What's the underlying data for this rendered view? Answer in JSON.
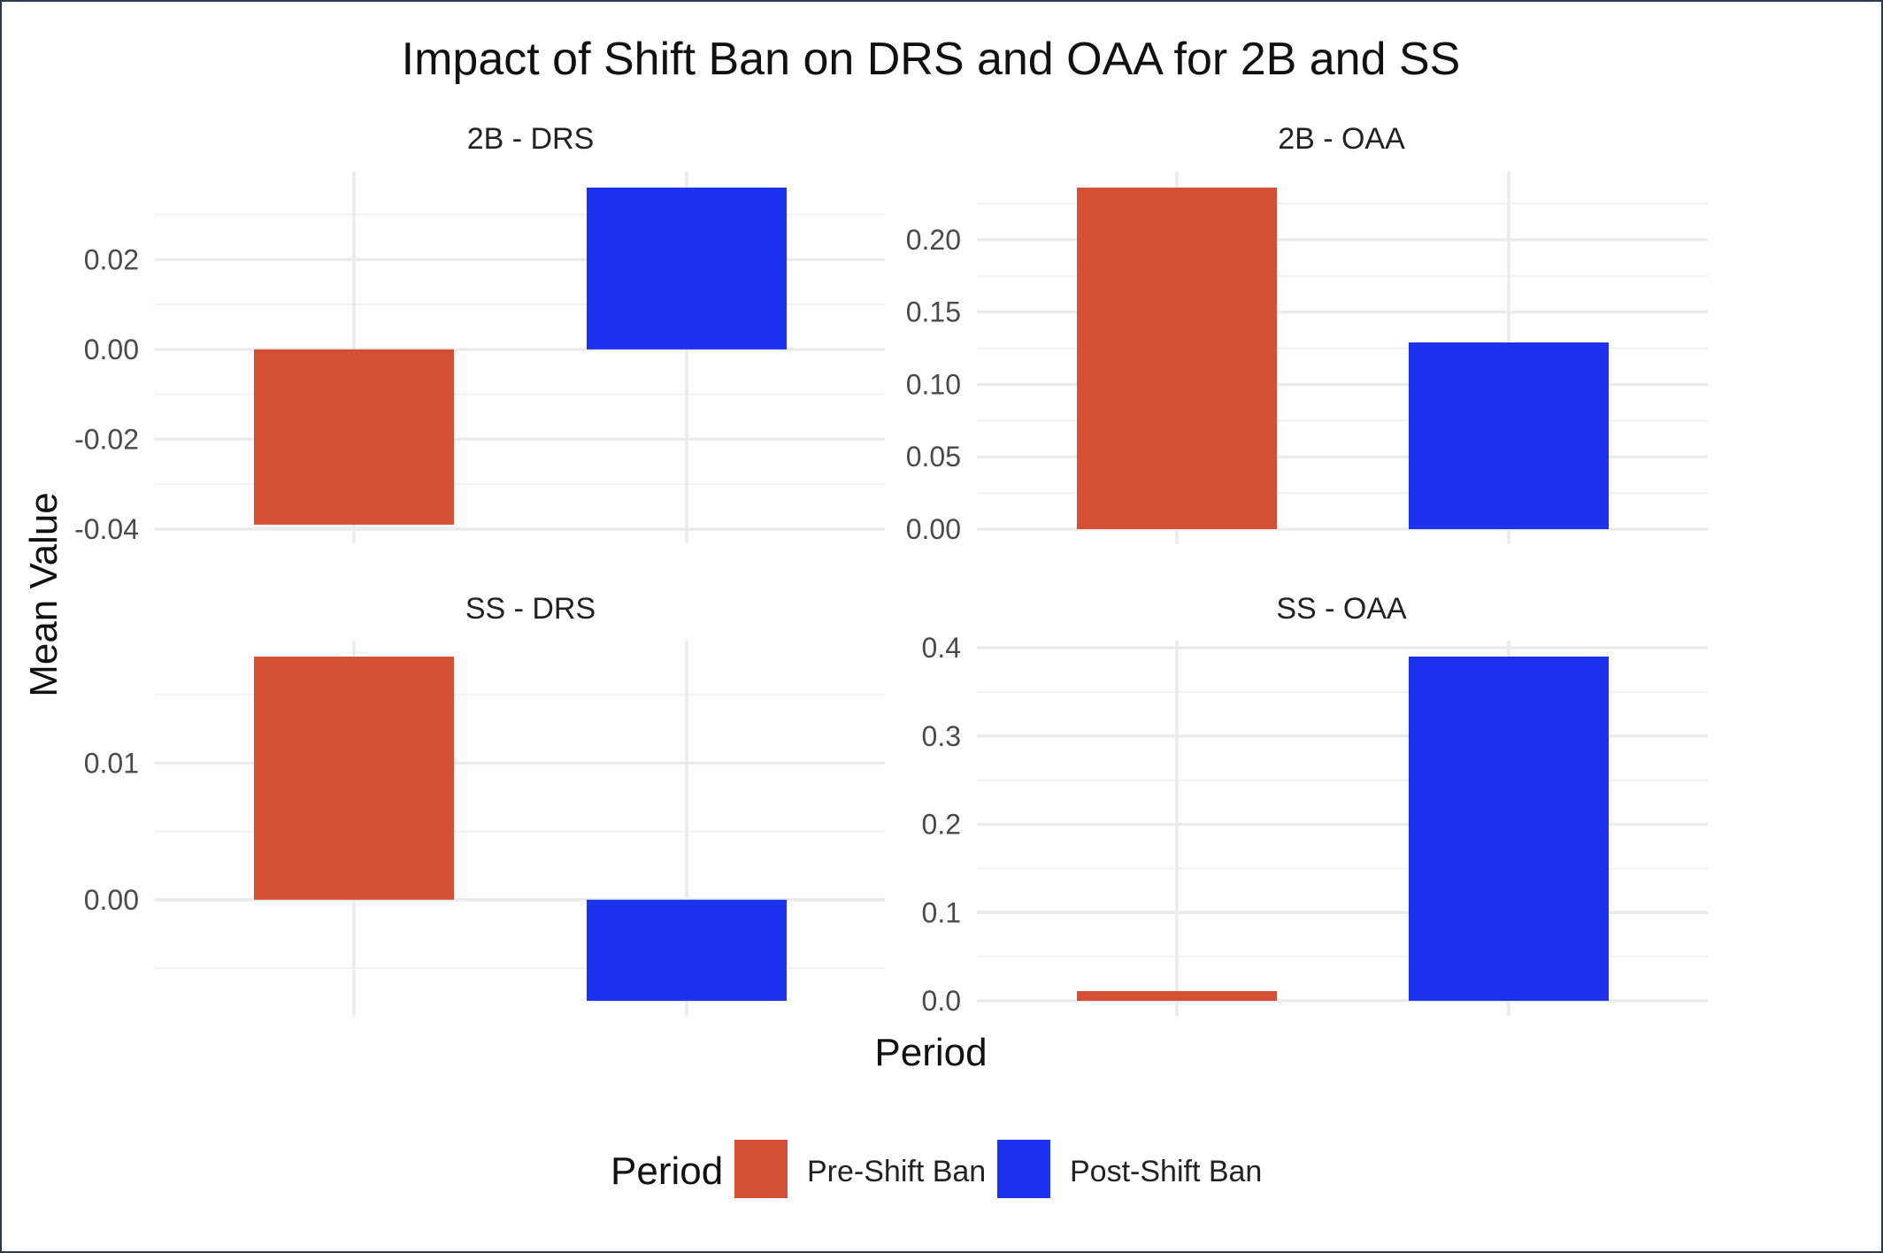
{
  "chart_data": {
    "type": "bar",
    "title": "Impact of Shift Ban on DRS and OAA for 2B and SS",
    "xlabel": "Period",
    "ylabel": "Mean Value",
    "categories": [
      "Pre-Shift Ban",
      "Post-Shift Ban"
    ],
    "colors": {
      "Pre-Shift Ban": "#d55136",
      "Post-Shift Ban": "#1c32ed"
    },
    "grid": true,
    "legend": {
      "title": "Period",
      "position": "bottom",
      "entries": [
        "Pre-Shift Ban",
        "Post-Shift Ban"
      ]
    },
    "panels": [
      {
        "label": "2B - DRS",
        "values": [
          -0.039,
          0.036
        ],
        "ylim": [
          -0.04,
          0.036
        ],
        "ticks": [
          0.02,
          0.0,
          -0.02,
          -0.04
        ],
        "tick_labels": [
          "0.02",
          "0.00",
          "-0.02",
          "-0.04"
        ]
      },
      {
        "label": "2B - OAA",
        "values": [
          0.236,
          0.129
        ],
        "ylim": [
          0.0,
          0.236
        ],
        "ticks": [
          0.2,
          0.15,
          0.1,
          0.05,
          0.0
        ],
        "tick_labels": [
          "0.20",
          "0.15",
          "0.10",
          "0.05",
          "0.00"
        ]
      },
      {
        "label": "SS - DRS",
        "values": [
          0.0178,
          -0.0074
        ],
        "ylim": [
          -0.0074,
          0.0178
        ],
        "ticks": [
          0.01,
          0.0
        ],
        "tick_labels": [
          "0.01",
          "0.00"
        ]
      },
      {
        "label": "SS - OAA",
        "values": [
          0.011,
          0.39
        ],
        "ylim": [
          0.0,
          0.39
        ],
        "ticks": [
          0.4,
          0.3,
          0.2,
          0.1,
          0.0
        ],
        "tick_labels": [
          "0.4",
          "0.3",
          "0.2",
          "0.1",
          "0.0"
        ]
      }
    ]
  }
}
